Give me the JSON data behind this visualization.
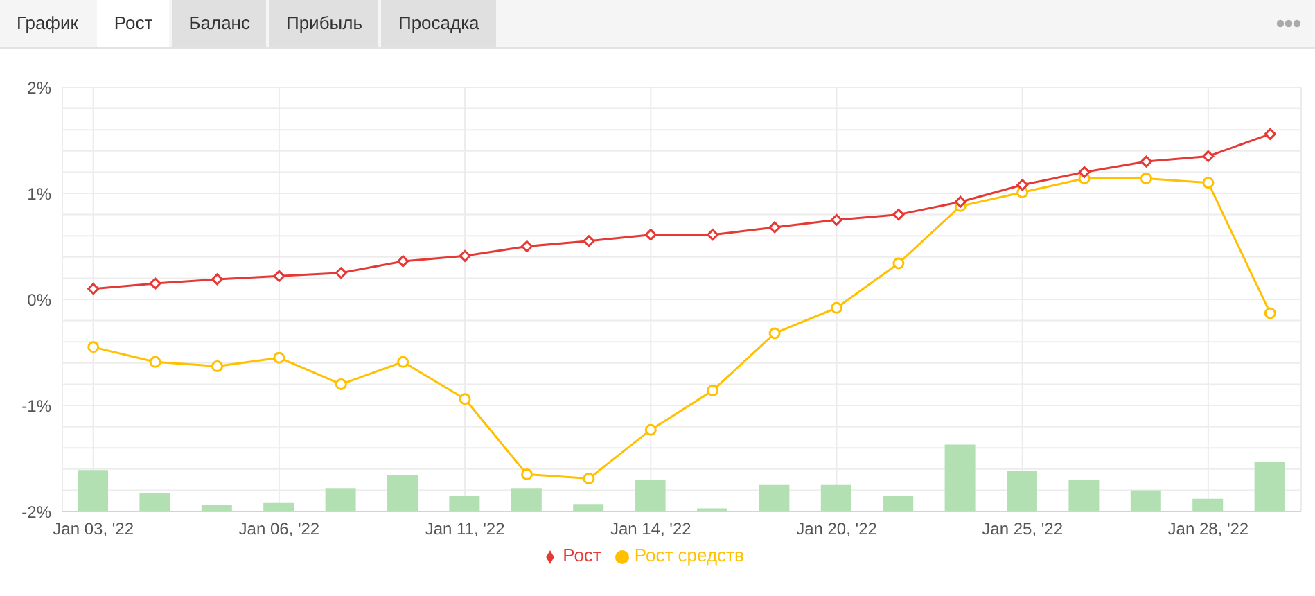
{
  "chart_data": {
    "type": "line",
    "annotations": [
      "График",
      "Рост",
      "Баланс",
      "Прибыль",
      "Просадка"
    ],
    "categories": [
      "Jan 03, '22",
      null,
      null,
      "Jan 06, '22",
      null,
      null,
      "Jan 11, '22",
      null,
      null,
      "Jan 14, '22",
      null,
      null,
      "Jan 20, '22",
      null,
      null,
      "Jan 25, '22",
      null,
      null,
      "Jan 28, '22",
      null
    ],
    "series": [
      {
        "type": "bar",
        "color": "#b3e0b3",
        "base": [
          -2,
          -2,
          -2,
          -2,
          -2,
          -2,
          -2,
          -2,
          -2,
          -2,
          -2,
          -2,
          -2,
          -2,
          -2,
          -2,
          -2,
          -2,
          -2,
          -2
        ],
        "values": [
          0.39,
          0.17,
          0.06,
          0.08,
          0.22,
          0.34,
          0.15,
          0.22,
          0.07,
          0.3,
          0.03,
          0.25,
          0.25,
          0.15,
          0.63,
          0.38,
          0.3,
          0.2,
          0.12,
          0.47
        ]
      },
      {
        "name": "Рост средств",
        "color": "#ffc000",
        "marker": "circle",
        "values": [
          -0.45,
          -0.59,
          -0.63,
          -0.55,
          -0.8,
          -0.59,
          -0.94,
          -1.65,
          -1.69,
          -1.23,
          -0.86,
          -0.32,
          -0.08,
          0.34,
          0.88,
          1.01,
          1.14,
          1.14,
          1.1,
          -0.13
        ]
      },
      {
        "name": "Рост",
        "color": "#e53935",
        "marker": "diamond",
        "values": [
          0.1,
          0.15,
          0.19,
          0.22,
          0.25,
          0.36,
          0.41,
          0.5,
          0.55,
          0.61,
          0.61,
          0.68,
          0.75,
          0.8,
          0.92,
          1.08,
          1.2,
          1.3,
          1.35,
          1.56
        ]
      }
    ],
    "ylim": [
      -2,
      2
    ],
    "yticks": [
      {
        "value": -2,
        "label": "-2%"
      },
      {
        "value": -1.8,
        "label": null
      },
      {
        "value": -1.6,
        "label": null
      },
      {
        "value": -1.4,
        "label": null
      },
      {
        "value": -1.2,
        "label": null
      },
      {
        "value": -1,
        "label": "-1%"
      },
      {
        "value": -0.8,
        "label": null
      },
      {
        "value": -0.6,
        "label": null
      },
      {
        "value": -0.4,
        "label": null
      },
      {
        "value": -0.2,
        "label": null
      },
      {
        "value": 0,
        "label": "0%"
      },
      {
        "value": 0.2,
        "label": null
      },
      {
        "value": 0.4,
        "label": null
      },
      {
        "value": 0.6,
        "label": null
      },
      {
        "value": 0.8,
        "label": null
      },
      {
        "value": 1,
        "label": "1%"
      },
      {
        "value": 1.2,
        "label": null
      },
      {
        "value": 1.4,
        "label": null
      },
      {
        "value": 1.6,
        "label": null
      },
      {
        "value": 1.8,
        "label": null
      },
      {
        "value": 2,
        "label": "2%"
      }
    ],
    "grid": true,
    "legend": "bottom"
  }
}
